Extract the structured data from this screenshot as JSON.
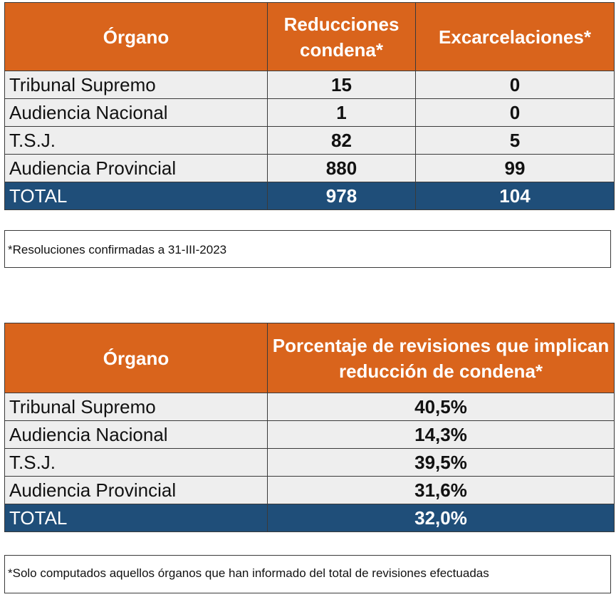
{
  "table1": {
    "headers": [
      "Órgano",
      "Reducciones condena*",
      "Excarcelaciones*"
    ],
    "rows": [
      {
        "organo": "Tribunal Supremo",
        "reducciones": "15",
        "excarcelaciones": "0"
      },
      {
        "organo": "Audiencia Nacional",
        "reducciones": "1",
        "excarcelaciones": "0"
      },
      {
        "organo": "T.S.J.",
        "reducciones": "82",
        "excarcelaciones": "5"
      },
      {
        "organo": "Audiencia Provincial",
        "reducciones": "880",
        "excarcelaciones": "99"
      }
    ],
    "total": {
      "organo": "TOTAL",
      "reducciones": "978",
      "excarcelaciones": "104"
    },
    "note": "*Resoluciones confirmadas a 31-III-2023"
  },
  "table2": {
    "headers": [
      "Órgano",
      "Porcentaje de revisiones que implican reducción de condena*"
    ],
    "rows": [
      {
        "organo": "Tribunal Supremo",
        "porcentaje": "40,5%"
      },
      {
        "organo": "Audiencia Nacional",
        "porcentaje": "14,3%"
      },
      {
        "organo": "T.S.J.",
        "porcentaje": "39,5%"
      },
      {
        "organo": "Audiencia Provincial",
        "porcentaje": "31,6%"
      }
    ],
    "total": {
      "organo": "TOTAL",
      "porcentaje": "32,0%"
    },
    "note": "*Solo computados aquellos órganos que han informado del total de revisiones efectuadas"
  },
  "colors": {
    "header_bg": "#d9641c",
    "total_bg": "#1f4e79",
    "row_bg": "#eeeeee"
  }
}
